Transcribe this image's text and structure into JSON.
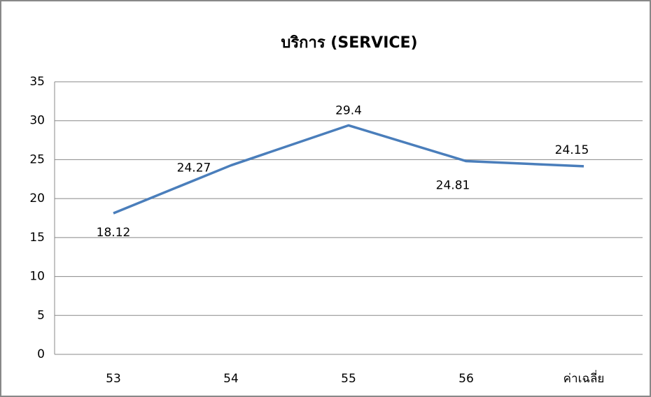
{
  "chart_data": {
    "type": "line",
    "title": "บริการ (SERVICE)",
    "categories": [
      "53",
      "54",
      "55",
      "56",
      "ค่าเฉลี่ย"
    ],
    "series": [
      {
        "name": "บริการ",
        "color": "#4a7ebb",
        "values": [
          18.12,
          24.27,
          29.4,
          24.81,
          24.15
        ]
      }
    ],
    "ylim": [
      0,
      35
    ],
    "yticks": [
      0,
      5,
      10,
      15,
      20,
      25,
      30,
      35
    ],
    "grid": true,
    "legend": false
  }
}
